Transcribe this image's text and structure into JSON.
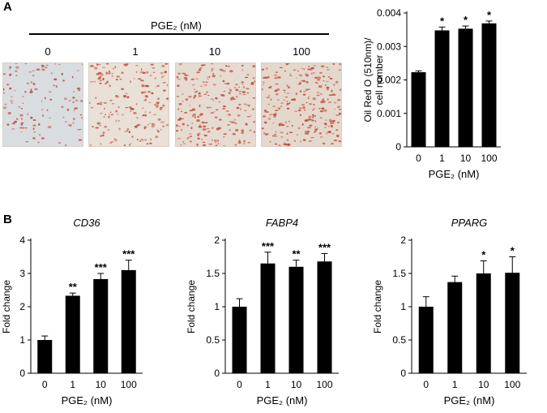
{
  "panel_a_letter": "A",
  "panel_b_letter": "B",
  "pge_header": "PGE₂ (nM)",
  "concentrations": [
    "0",
    "1",
    "10",
    "100"
  ],
  "micrographs": [
    {
      "condition": "0",
      "stain_density": 0.25
    },
    {
      "condition": "1",
      "stain_density": 0.55
    },
    {
      "condition": "10",
      "stain_density": 0.7
    },
    {
      "condition": "100",
      "stain_density": 0.85
    }
  ],
  "colors": {
    "bar": "#000000",
    "stain": "#c24a3c",
    "background_plate": "#e8e2da"
  },
  "chart_data": [
    {
      "type": "bar",
      "id": "oilred",
      "title": "",
      "categories": [
        "0",
        "1",
        "10",
        "100"
      ],
      "values": [
        0.00223,
        0.00348,
        0.00353,
        0.00369
      ],
      "errors": [
        4e-05,
        0.0001,
        8e-05,
        7e-05
      ],
      "significance": [
        "",
        "*",
        "*",
        "*"
      ],
      "ylim": [
        0,
        0.004
      ],
      "yticks": [
        "0",
        "0.001",
        "0.002",
        "0.003",
        "0.004"
      ],
      "ylabel_line1": "Oil Red O (510nm)/",
      "ylabel_line2": "cell number",
      "xlabel": "PGE₂ (nM)"
    },
    {
      "type": "bar",
      "id": "cd36",
      "title": "CD36",
      "categories": [
        "0",
        "1",
        "10",
        "100"
      ],
      "values": [
        1.0,
        2.33,
        2.83,
        3.1
      ],
      "errors": [
        0.12,
        0.08,
        0.17,
        0.3
      ],
      "significance": [
        "",
        "**",
        "***",
        "***"
      ],
      "ylim": [
        0,
        4
      ],
      "yticks": [
        "0",
        "1",
        "2",
        "3",
        "4"
      ],
      "ylabel": "Fold change",
      "xlabel": "PGE₂ (nM)"
    },
    {
      "type": "bar",
      "id": "fabp4",
      "title": "FABP4",
      "categories": [
        "0",
        "1",
        "10",
        "100"
      ],
      "values": [
        1.0,
        1.65,
        1.6,
        1.68
      ],
      "errors": [
        0.12,
        0.17,
        0.1,
        0.12
      ],
      "significance": [
        "",
        "***",
        "**",
        "***"
      ],
      "ylim": [
        0,
        2
      ],
      "yticks": [
        "0",
        "0.5",
        "1",
        "1.5",
        "2"
      ],
      "ylabel": "Fold change",
      "xlabel": "PGE₂ (nM)"
    },
    {
      "type": "bar",
      "id": "pparg",
      "title": "PPARG",
      "categories": [
        "0",
        "1",
        "10",
        "100"
      ],
      "values": [
        1.0,
        1.37,
        1.5,
        1.51
      ],
      "errors": [
        0.15,
        0.09,
        0.19,
        0.24
      ],
      "significance": [
        "",
        "",
        "*",
        "*"
      ],
      "ylim": [
        0,
        2
      ],
      "yticks": [
        "0",
        "0.5",
        "1",
        "1.5",
        "2"
      ],
      "ylabel": "Fold change",
      "xlabel": "PGE₂ (nM)"
    }
  ]
}
